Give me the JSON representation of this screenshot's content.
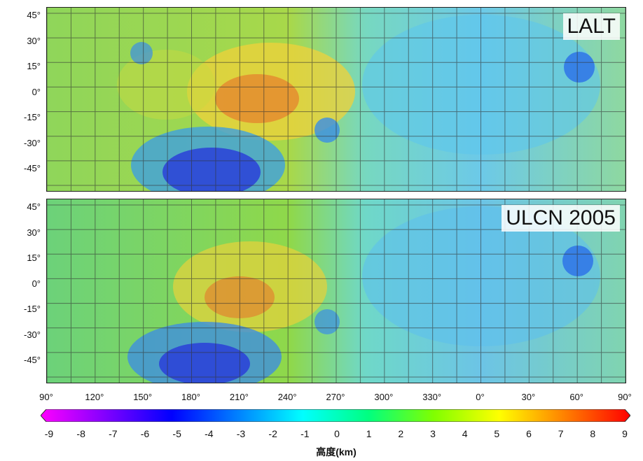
{
  "panels": [
    {
      "label": "LALT"
    },
    {
      "label": "ULCN 2005"
    }
  ],
  "lat_ticks": [
    "45°",
    "30°",
    "15°",
    "0°",
    "-15°",
    "-30°",
    "-45°"
  ],
  "lon_ticks": [
    "90°",
    "120°",
    "150°",
    "180°",
    "210°",
    "240°",
    "270°",
    "300°",
    "330°",
    "0°",
    "30°",
    "60°",
    "90°"
  ],
  "colorbar": {
    "ticks": [
      "-9",
      "-8",
      "-7",
      "-6",
      "-5",
      "-4",
      "-3",
      "-2",
      "-1",
      "0",
      "1",
      "2",
      "3",
      "4",
      "5",
      "6",
      "7",
      "8",
      "9"
    ],
    "title": "高度(km)",
    "min": -9,
    "max": 9,
    "colors": [
      "#ff00ff",
      "#8000ff",
      "#0000ff",
      "#0080ff",
      "#00ffff",
      "#00ff80",
      "#80ff00",
      "#ffff00",
      "#ff8000",
      "#ff0000"
    ]
  },
  "map_colors": {
    "highland": "#7fd04a",
    "high": "#f0d23a",
    "peak": "#e84020",
    "mare": "#6fd6e6",
    "basin": "#2a40d8",
    "grid": "#333333"
  }
}
